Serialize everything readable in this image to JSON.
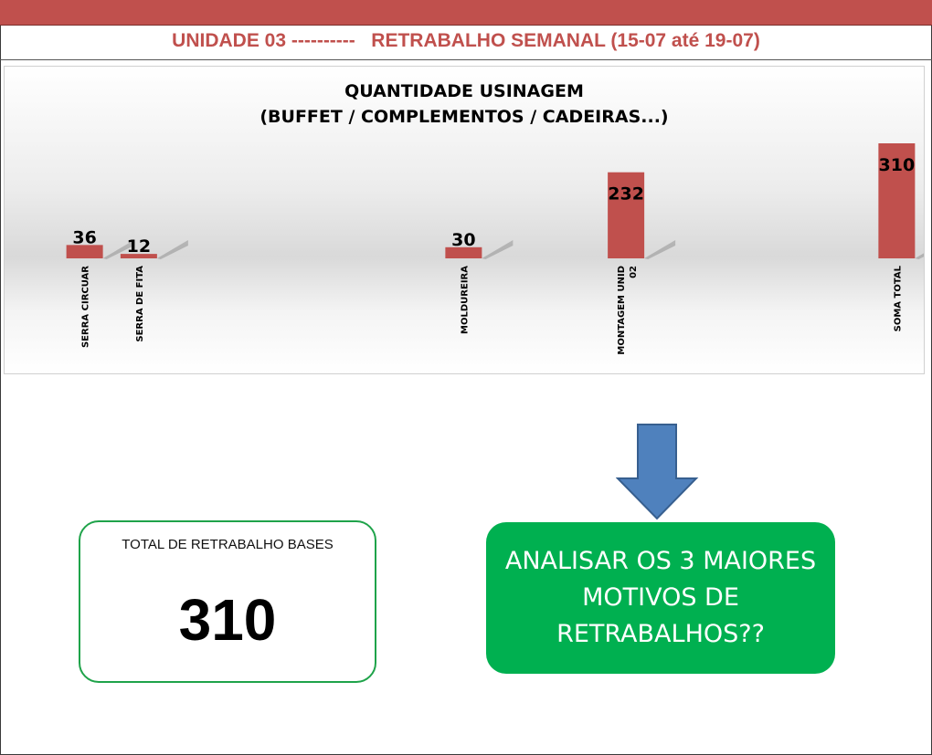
{
  "header": {
    "title": "UNIDADE 03 ----------   RETRABALHO SEMANAL (15-07 até 19-07)"
  },
  "colors": {
    "band": "#c0504d",
    "bar": "#c0504d",
    "arrow": "#4f81bd",
    "total_border": "#1fa34a",
    "analysis_bg": "#00b050"
  },
  "chart_data": {
    "type": "bar",
    "title": "QUANTIDADE USINAGEM",
    "subtitle": "(BUFFET / COMPLEMENTOS / CADEIRAS...)",
    "categories": [
      "SERRA CIRCUAR",
      "SERRA DE FITA",
      "",
      "",
      "",
      "",
      "",
      "MOLDUREIRA",
      "",
      "",
      "MONTAGEM UNID 02",
      "",
      "",
      "",
      "",
      "SOMA TOTAL"
    ],
    "values": [
      36,
      12,
      null,
      null,
      null,
      null,
      null,
      30,
      null,
      null,
      232,
      null,
      null,
      null,
      null,
      310
    ],
    "data_labels": true,
    "legend": "none",
    "grid": false,
    "ylim": [
      0,
      310
    ]
  },
  "arrow_icon": "arrow-down-icon",
  "total": {
    "label": "TOTAL DE RETRABALHO BASES",
    "value": "310"
  },
  "analysis": {
    "text": "ANALISAR OS 3 MAIORES MOTIVOS DE RETRABALHOS??"
  }
}
